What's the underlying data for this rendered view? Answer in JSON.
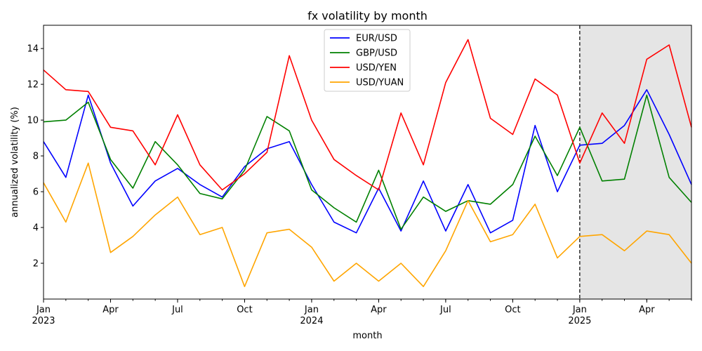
{
  "chart_data": {
    "type": "line",
    "title": "fx volatility by month",
    "xlabel": "month",
    "ylabel": "annualized volatility (%)",
    "x": [
      "2023-01",
      "2023-02",
      "2023-03",
      "2023-04",
      "2023-05",
      "2023-06",
      "2023-07",
      "2023-08",
      "2023-09",
      "2023-10",
      "2023-11",
      "2023-12",
      "2024-01",
      "2024-02",
      "2024-03",
      "2024-04",
      "2024-05",
      "2024-06",
      "2024-07",
      "2024-08",
      "2024-09",
      "2024-10",
      "2024-11",
      "2024-12",
      "2025-01",
      "2025-02",
      "2025-03",
      "2025-04",
      "2025-05",
      "2025-06"
    ],
    "ylim": [
      0,
      15.3
    ],
    "yticks": [
      2,
      4,
      6,
      8,
      10,
      12,
      14
    ],
    "xticks_major": [
      {
        "month": "2023-01",
        "label": "Jan",
        "sublabel": "2023"
      },
      {
        "month": "2023-04",
        "label": "Apr",
        "sublabel": ""
      },
      {
        "month": "2023-07",
        "label": "Jul",
        "sublabel": ""
      },
      {
        "month": "2023-10",
        "label": "Oct",
        "sublabel": ""
      },
      {
        "month": "2024-01",
        "label": "Jan",
        "sublabel": "2024"
      },
      {
        "month": "2024-04",
        "label": "Apr",
        "sublabel": ""
      },
      {
        "month": "2024-07",
        "label": "Jul",
        "sublabel": ""
      },
      {
        "month": "2024-10",
        "label": "Oct",
        "sublabel": ""
      },
      {
        "month": "2025-01",
        "label": "Jan",
        "sublabel": "2025"
      },
      {
        "month": "2025-04",
        "label": "Apr",
        "sublabel": ""
      }
    ],
    "forecast_start": "2025-01",
    "shade_color": "#e5e5e5",
    "grid": false,
    "legend_position": "top-center",
    "series": [
      {
        "name": "EUR/USD",
        "color": "#0000ff",
        "values": [
          8.8,
          6.8,
          11.4,
          7.6,
          5.2,
          6.6,
          7.3,
          6.4,
          5.7,
          7.4,
          8.4,
          8.8,
          6.4,
          4.3,
          3.7,
          6.2,
          3.8,
          6.6,
          3.8,
          6.4,
          3.7,
          4.4,
          9.7,
          6.0,
          8.6,
          8.7,
          9.7,
          11.7,
          9.2,
          6.4
        ]
      },
      {
        "name": "GBP/USD",
        "color": "#008000",
        "values": [
          9.9,
          10.0,
          11.0,
          7.8,
          6.2,
          8.8,
          7.5,
          5.9,
          5.6,
          7.2,
          10.2,
          9.4,
          6.1,
          5.1,
          4.3,
          7.2,
          3.9,
          5.7,
          4.9,
          5.5,
          5.3,
          6.4,
          9.1,
          6.9,
          9.6,
          6.6,
          6.7,
          11.4,
          6.8,
          5.4
        ]
      },
      {
        "name": "USD/YEN",
        "color": "#ff0000",
        "values": [
          12.8,
          11.7,
          11.6,
          9.6,
          9.4,
          7.5,
          10.3,
          7.5,
          6.1,
          7.0,
          8.2,
          13.6,
          10.0,
          7.8,
          6.9,
          6.1,
          10.4,
          7.5,
          12.1,
          14.5,
          10.1,
          9.2,
          12.3,
          11.4,
          7.6,
          10.4,
          8.7,
          13.4,
          14.2,
          9.6
        ]
      },
      {
        "name": "USD/YUAN",
        "color": "#ffa500",
        "values": [
          6.5,
          4.3,
          7.6,
          2.6,
          3.5,
          4.7,
          5.7,
          3.6,
          4.0,
          0.7,
          3.7,
          3.9,
          2.9,
          1.0,
          2.0,
          1.0,
          2.0,
          0.7,
          2.7,
          5.5,
          3.2,
          3.6,
          5.3,
          2.3,
          3.5,
          3.6,
          2.7,
          3.8,
          3.6,
          2.0
        ]
      }
    ]
  }
}
